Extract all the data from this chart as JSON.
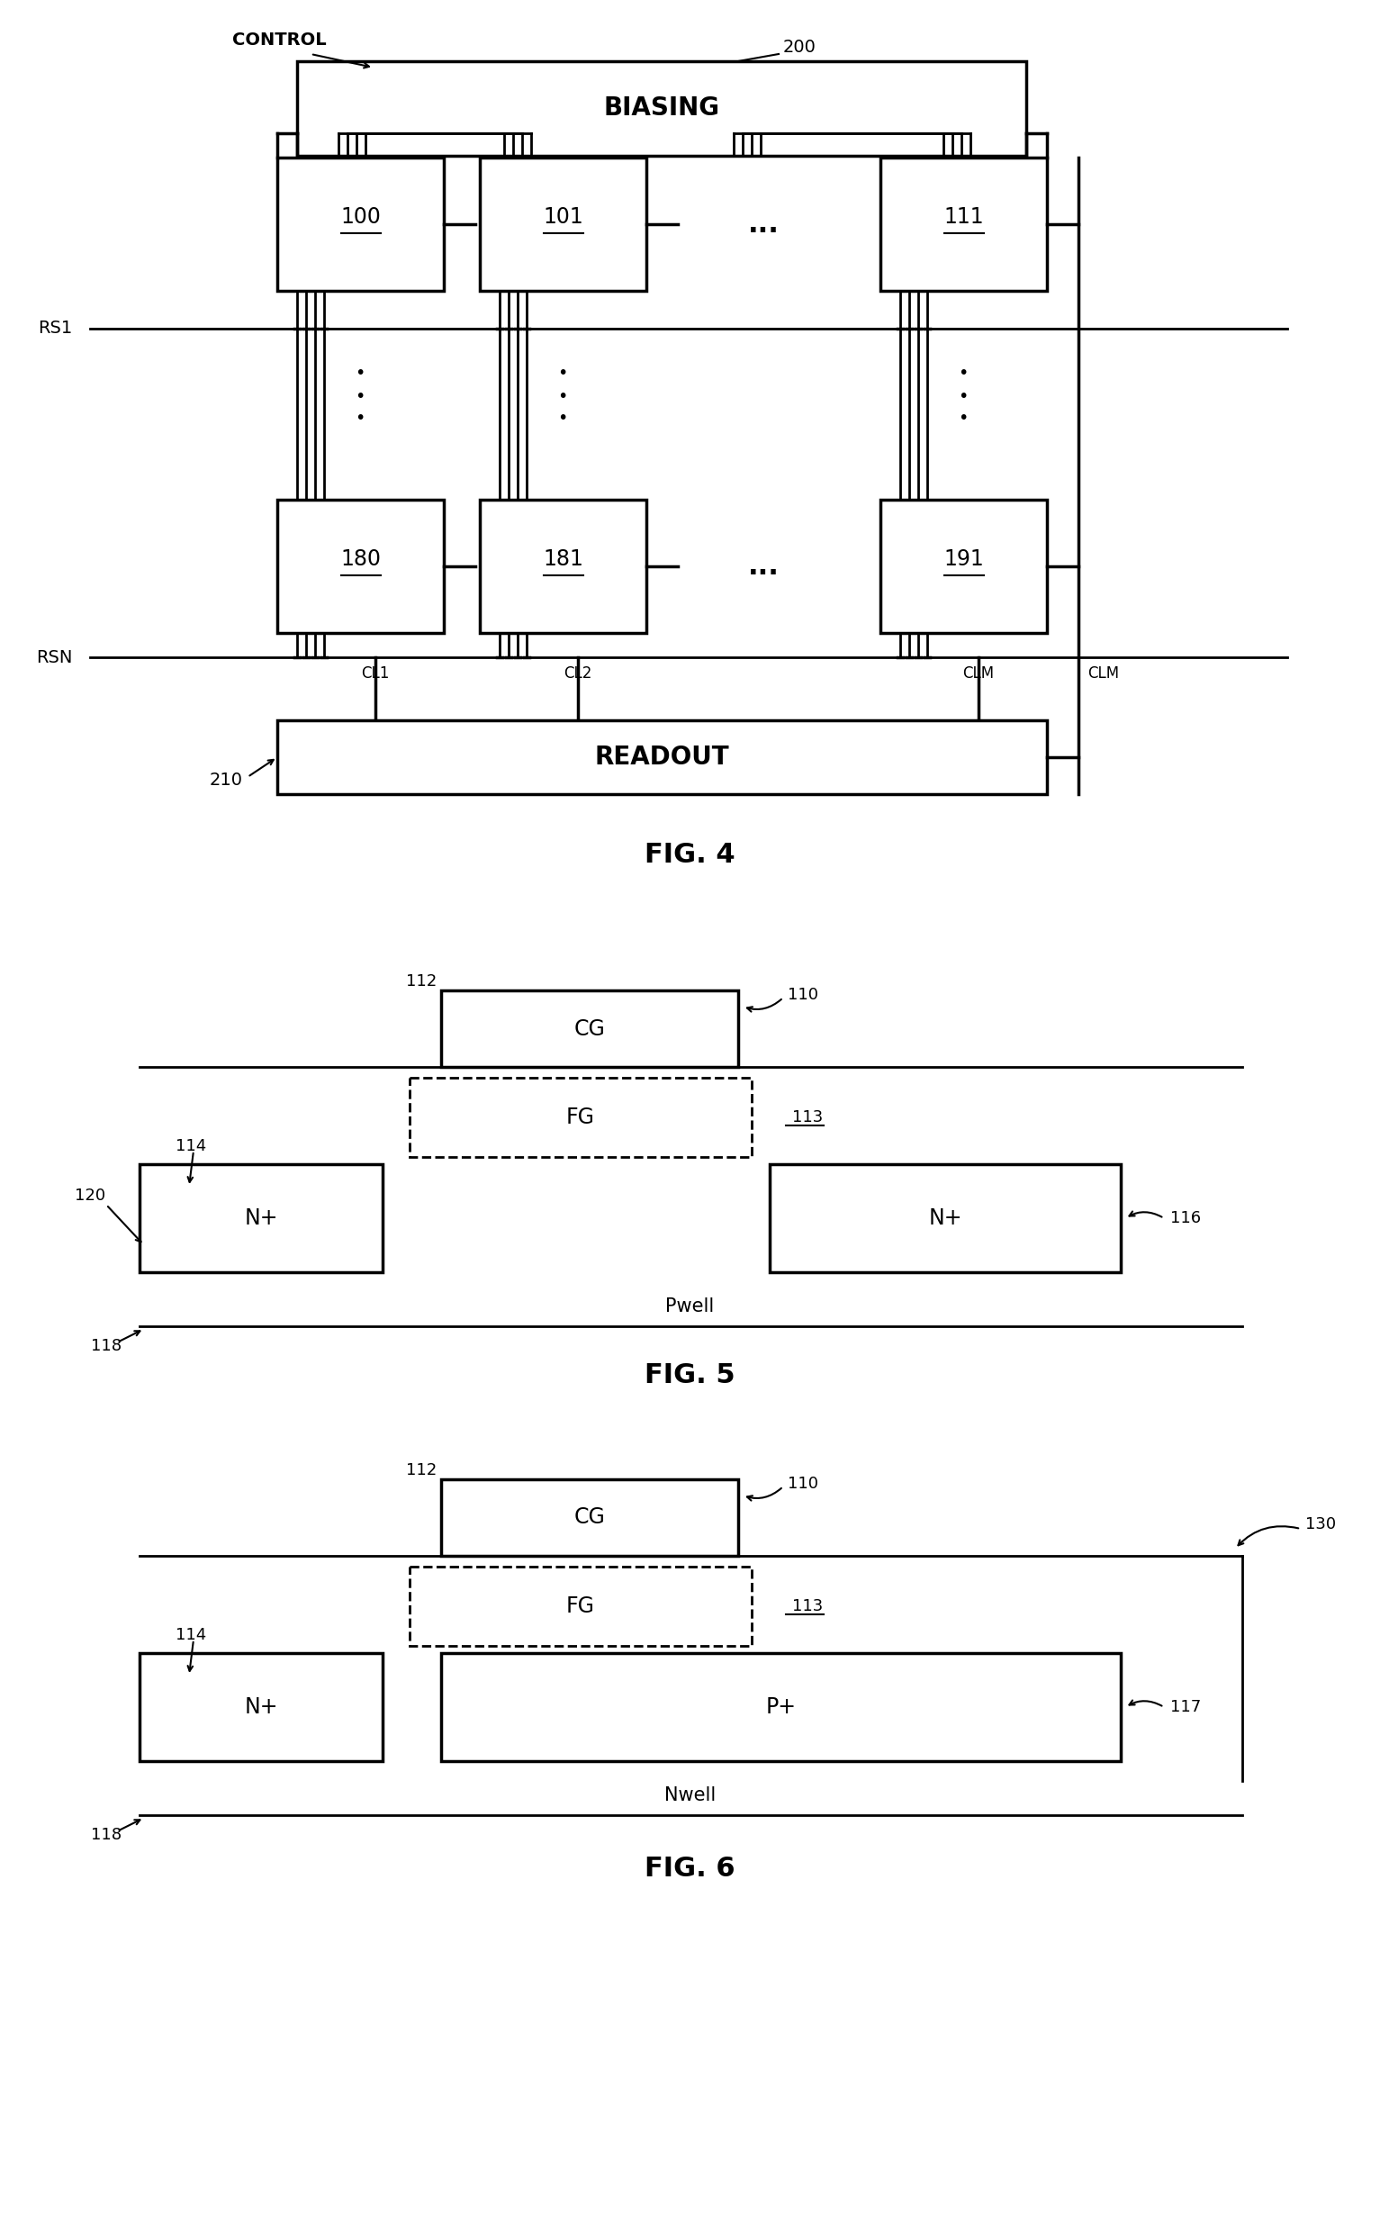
{
  "fig4": {
    "title": "FIG. 4",
    "biasing_label": "BIASING",
    "biasing_ref": "200",
    "readout_label": "READOUT",
    "readout_ref": "210",
    "control_label": "CONTROL",
    "rs1_label": "RS1",
    "rsn_label": "RSN",
    "cl_labels": [
      "CL1",
      "CL2",
      "CLM"
    ],
    "cells_top": [
      "100",
      "101",
      "111"
    ],
    "cells_bot": [
      "180",
      "181",
      "191"
    ]
  },
  "fig5": {
    "title": "FIG. 5",
    "cg_label": "CG",
    "fg_label": "FG",
    "left_n_label": "N+",
    "right_n_label": "N+",
    "well_label": "Pwell",
    "ref_112": "112",
    "ref_110": "110",
    "ref_113": "113",
    "ref_114": "114",
    "ref_120": "120",
    "ref_116": "116",
    "ref_118": "118"
  },
  "fig6": {
    "title": "FIG. 6",
    "cg_label": "CG",
    "fg_label": "FG",
    "left_n_label": "N+",
    "right_p_label": "P+",
    "well_label": "Nwell",
    "ref_112": "112",
    "ref_110": "110",
    "ref_113": "113",
    "ref_114": "114",
    "ref_117": "117",
    "ref_118": "118",
    "ref_130": "130"
  },
  "bg_color": "#ffffff",
  "fg_color": "#000000"
}
